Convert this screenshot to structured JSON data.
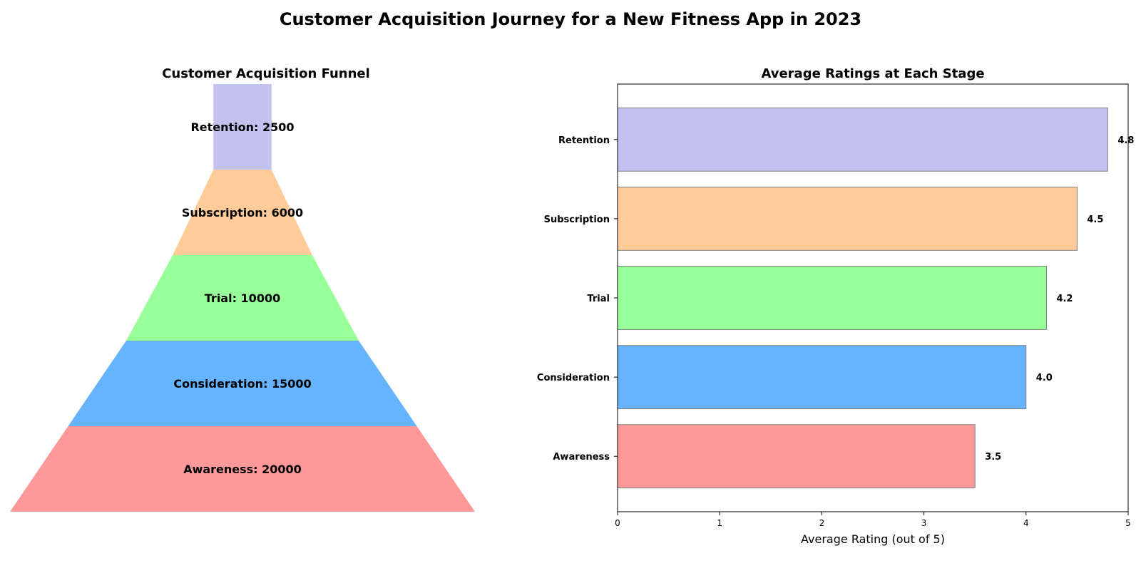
{
  "figure": {
    "title": "Customer Acquisition Journey for a New Fitness App in 2023"
  },
  "chart_data": [
    {
      "type": "funnel",
      "title": "Customer Acquisition Funnel",
      "stages": [
        "Awareness",
        "Consideration",
        "Trial",
        "Subscription",
        "Retention"
      ],
      "values": [
        20000,
        15000,
        10000,
        6000,
        2500
      ],
      "labels": [
        "Awareness: 20000",
        "Consideration: 15000",
        "Trial: 10000",
        "Subscription: 6000",
        "Retention: 2500"
      ],
      "colors": [
        "#ff9999",
        "#66b3ff",
        "#99ff99",
        "#ffcc99",
        "#c2c2f0"
      ]
    },
    {
      "type": "bar",
      "orientation": "horizontal",
      "title": "Average Ratings at Each Stage",
      "categories": [
        "Awareness",
        "Consideration",
        "Trial",
        "Subscription",
        "Retention"
      ],
      "values": [
        3.5,
        4.0,
        4.2,
        4.5,
        4.8
      ],
      "value_labels": [
        "3.5",
        "4.0",
        "4.2",
        "4.5",
        "4.8"
      ],
      "colors": [
        "#ff9999",
        "#66b3ff",
        "#99ff99",
        "#ffcc99",
        "#c2c2f0"
      ],
      "xlabel": "Average Rating (out of 5)",
      "ylabel": "",
      "xlim": [
        0,
        5
      ],
      "xticks": [
        "0",
        "1",
        "2",
        "3",
        "4",
        "5"
      ],
      "grid": false
    }
  ]
}
